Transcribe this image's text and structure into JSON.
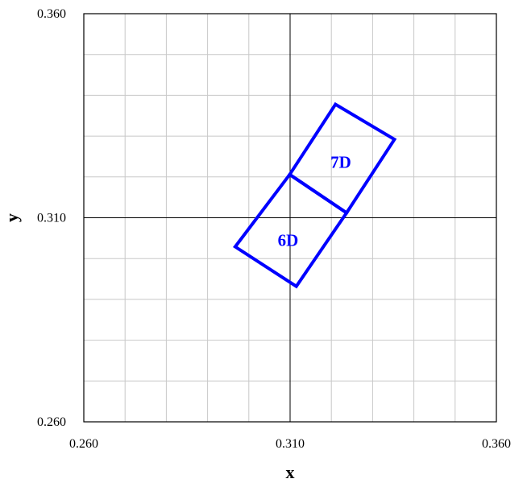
{
  "chart_data": {
    "type": "line",
    "title": "",
    "xlabel": "x",
    "ylabel": "y",
    "xlim": [
      0.26,
      0.36
    ],
    "ylim": [
      0.26,
      0.36
    ],
    "x_ticks": [
      "0.260",
      "0.310",
      "0.360"
    ],
    "y_ticks": [
      "0.260",
      "0.310",
      "0.360"
    ],
    "minor_grid_step": 0.01,
    "grid": true,
    "center_lines": {
      "x": 0.31,
      "y": 0.31
    },
    "series_color": "#0000ff",
    "regions": [
      {
        "label": "6D",
        "label_at": [
          0.3095,
          0.3045
        ],
        "vertices": [
          [
            0.2967,
            0.3029
          ],
          [
            0.3099,
            0.3206
          ],
          [
            0.3237,
            0.3112
          ],
          [
            0.3115,
            0.2932
          ]
        ]
      },
      {
        "label": "7D",
        "label_at": [
          0.3223,
          0.3236
        ],
        "vertices": [
          [
            0.3099,
            0.3206
          ],
          [
            0.321,
            0.3378
          ],
          [
            0.3353,
            0.3292
          ],
          [
            0.3237,
            0.3112
          ]
        ]
      }
    ]
  }
}
